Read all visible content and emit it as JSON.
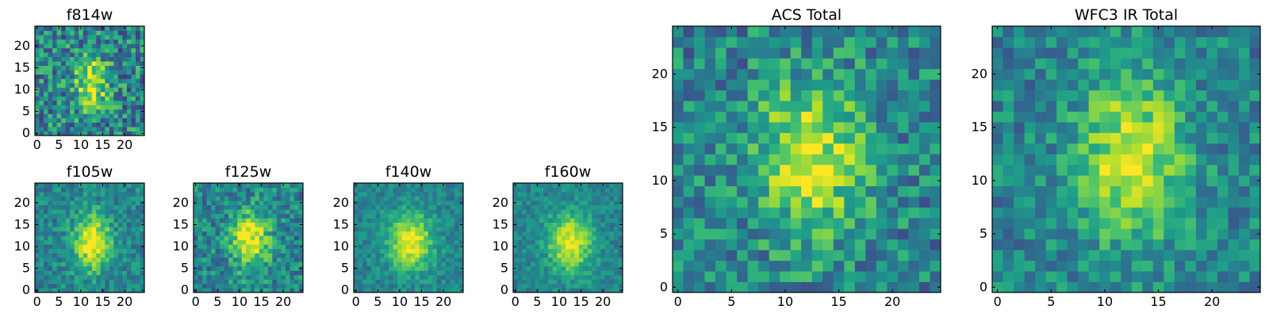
{
  "chart_data": [
    {
      "type": "heatmap",
      "title": "f814w",
      "grid_size": 25,
      "colormap": "viridis",
      "xlim": [
        0,
        24
      ],
      "ylim": [
        0,
        24
      ],
      "xticks": [
        0,
        5,
        10,
        15,
        20
      ],
      "yticks": [
        0,
        5,
        10,
        15,
        20
      ],
      "source": {
        "center": [
          12.5,
          11.5
        ],
        "sigma": [
          2.5,
          4.0
        ],
        "peak": 1.0,
        "noise": 0.35
      }
    },
    {
      "type": "heatmap",
      "title": "f105w",
      "grid_size": 25,
      "colormap": "viridis",
      "xlim": [
        0,
        24
      ],
      "ylim": [
        0,
        24
      ],
      "xticks": [
        0,
        5,
        10,
        15,
        20
      ],
      "yticks": [
        0,
        5,
        10,
        15,
        20
      ],
      "source": {
        "center": [
          12.5,
          11.0
        ],
        "sigma": [
          3.0,
          4.5
        ],
        "peak": 1.0,
        "noise": 0.2
      }
    },
    {
      "type": "heatmap",
      "title": "f125w",
      "grid_size": 25,
      "colormap": "viridis",
      "xlim": [
        0,
        24
      ],
      "ylim": [
        0,
        24
      ],
      "xticks": [
        0,
        5,
        10,
        15,
        20
      ],
      "yticks": [
        0,
        5,
        10,
        15,
        20
      ],
      "source": {
        "center": [
          12.5,
          11.5
        ],
        "sigma": [
          3.0,
          4.5
        ],
        "peak": 1.0,
        "noise": 0.25
      }
    },
    {
      "type": "heatmap",
      "title": "f140w",
      "grid_size": 25,
      "colormap": "viridis",
      "xlim": [
        0,
        24
      ],
      "ylim": [
        0,
        24
      ],
      "xticks": [
        0,
        5,
        10,
        15,
        20
      ],
      "yticks": [
        0,
        5,
        10,
        15,
        20
      ],
      "source": {
        "center": [
          12.5,
          11.0
        ],
        "sigma": [
          3.5,
          4.5
        ],
        "peak": 1.0,
        "noise": 0.15
      }
    },
    {
      "type": "heatmap",
      "title": "f160w",
      "grid_size": 25,
      "colormap": "viridis",
      "xlim": [
        0,
        24
      ],
      "ylim": [
        0,
        24
      ],
      "xticks": [
        0,
        5,
        10,
        15,
        20
      ],
      "yticks": [
        0,
        5,
        10,
        15,
        20
      ],
      "source": {
        "center": [
          12.5,
          11.0
        ],
        "sigma": [
          3.5,
          4.5
        ],
        "peak": 1.0,
        "noise": 0.15
      }
    },
    {
      "type": "heatmap",
      "title": "ACS Total",
      "grid_size": 25,
      "colormap": "viridis",
      "xlim": [
        0,
        24
      ],
      "ylim": [
        0,
        24
      ],
      "xticks": [
        0,
        5,
        10,
        15,
        20
      ],
      "yticks": [
        0,
        5,
        10,
        15,
        20
      ],
      "source": {
        "center": [
          12.5,
          12.0
        ],
        "sigma": [
          3.5,
          5.0
        ],
        "peak": 0.9,
        "noise": 0.28
      }
    },
    {
      "type": "heatmap",
      "title": "WFC3 IR Total",
      "grid_size": 25,
      "colormap": "viridis",
      "xlim": [
        0,
        24
      ],
      "ylim": [
        0,
        24
      ],
      "xticks": [
        0,
        5,
        10,
        15,
        20
      ],
      "yticks": [
        0,
        5,
        10,
        15,
        20
      ],
      "source": {
        "center": [
          12.5,
          12.0
        ],
        "sigma": [
          3.5,
          5.5
        ],
        "peak": 0.9,
        "noise": 0.22
      }
    }
  ]
}
